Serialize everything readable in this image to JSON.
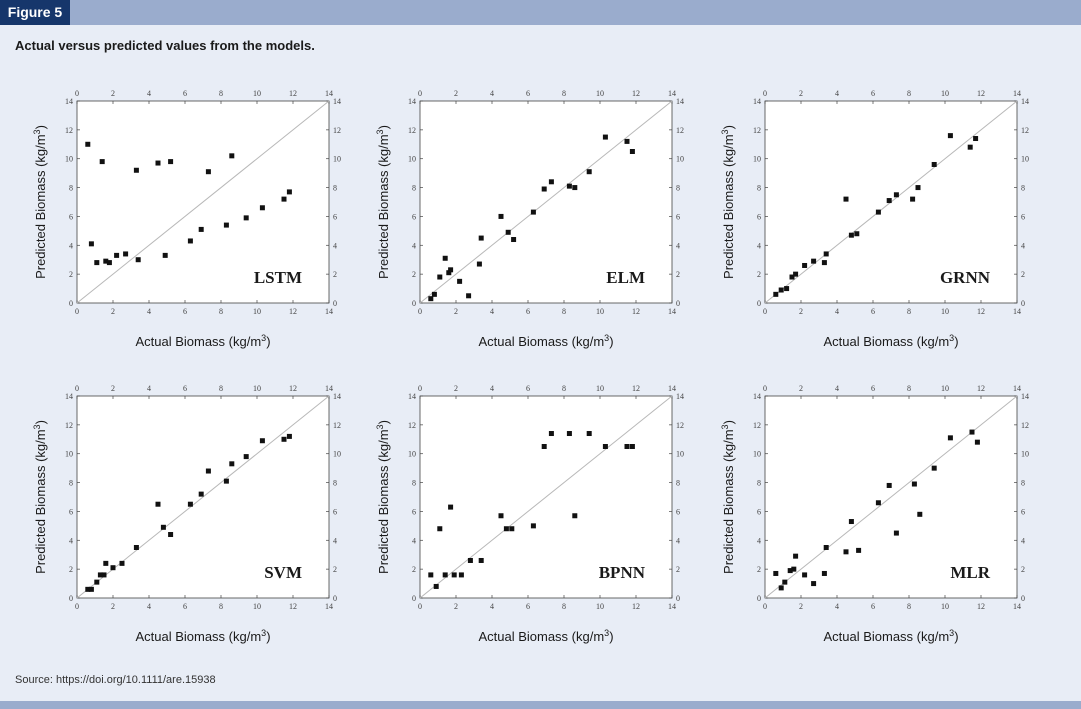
{
  "figure_label": "Figure 5",
  "caption": "Actual versus predicted values from the models.",
  "source": "Source: https://doi.org/10.1111/are.15938",
  "colors": {
    "header_bar": "#9aaccd",
    "figure_tab": "#16366b",
    "background": "#e8edf6",
    "points": "#111111",
    "identity_line": "#b8b8b8"
  },
  "chart_data": [
    {
      "type": "scatter",
      "label": "LSTM",
      "xlabel": "Actual Biomass (kg/m³)",
      "ylabel": "Predicted Biomass (kg/m³)",
      "xlim": [
        0,
        14
      ],
      "ylim": [
        0,
        14
      ],
      "ticks": [
        "0",
        "2",
        "4",
        "6",
        "8",
        "10",
        "12",
        "14"
      ],
      "reference_line": "y = x",
      "grid": false,
      "points": [
        [
          0.6,
          11.0
        ],
        [
          0.8,
          4.1
        ],
        [
          1.1,
          2.8
        ],
        [
          1.4,
          9.8
        ],
        [
          1.6,
          2.9
        ],
        [
          1.8,
          2.8
        ],
        [
          2.2,
          3.3
        ],
        [
          2.7,
          3.4
        ],
        [
          3.3,
          9.2
        ],
        [
          3.4,
          3.0
        ],
        [
          4.5,
          9.7
        ],
        [
          4.9,
          3.3
        ],
        [
          5.2,
          9.8
        ],
        [
          6.3,
          4.3
        ],
        [
          6.9,
          5.1
        ],
        [
          7.3,
          9.1
        ],
        [
          8.3,
          5.4
        ],
        [
          8.6,
          10.2
        ],
        [
          9.4,
          5.9
        ],
        [
          10.3,
          6.6
        ],
        [
          11.5,
          7.2
        ],
        [
          11.8,
          7.7
        ]
      ]
    },
    {
      "type": "scatter",
      "label": "ELM",
      "xlabel": "Actual Biomass (kg/m³)",
      "ylabel": "Predicted Biomass (kg/m³)",
      "xlim": [
        0,
        14
      ],
      "ylim": [
        0,
        14
      ],
      "ticks": [
        "0",
        "2",
        "4",
        "6",
        "8",
        "10",
        "12",
        "14"
      ],
      "reference_line": "y = x",
      "grid": false,
      "points": [
        [
          0.6,
          0.3
        ],
        [
          0.8,
          0.6
        ],
        [
          1.1,
          1.8
        ],
        [
          1.4,
          3.1
        ],
        [
          1.6,
          2.1
        ],
        [
          1.7,
          2.3
        ],
        [
          2.2,
          1.5
        ],
        [
          2.7,
          0.5
        ],
        [
          3.3,
          2.7
        ],
        [
          3.4,
          4.5
        ],
        [
          4.5,
          6.0
        ],
        [
          4.9,
          4.9
        ],
        [
          5.2,
          4.4
        ],
        [
          6.3,
          6.3
        ],
        [
          6.9,
          7.9
        ],
        [
          7.3,
          8.4
        ],
        [
          8.3,
          8.1
        ],
        [
          8.6,
          8.0
        ],
        [
          9.4,
          9.1
        ],
        [
          10.3,
          11.5
        ],
        [
          11.5,
          11.2
        ],
        [
          11.8,
          10.5
        ]
      ]
    },
    {
      "type": "scatter",
      "label": "GRNN",
      "xlabel": "Actual Biomass (kg/m³)",
      "ylabel": "Predicted Biomass (kg/m³)",
      "xlim": [
        0,
        14
      ],
      "ylim": [
        0,
        14
      ],
      "ticks": [
        "0",
        "2",
        "4",
        "6",
        "8",
        "10",
        "12",
        "14"
      ],
      "reference_line": "y = x",
      "grid": false,
      "points": [
        [
          0.6,
          0.6
        ],
        [
          0.9,
          0.9
        ],
        [
          1.2,
          1.0
        ],
        [
          1.5,
          1.8
        ],
        [
          1.7,
          2.0
        ],
        [
          2.2,
          2.6
        ],
        [
          2.7,
          2.9
        ],
        [
          3.3,
          2.8
        ],
        [
          3.4,
          3.4
        ],
        [
          4.5,
          7.2
        ],
        [
          4.8,
          4.7
        ],
        [
          5.1,
          4.8
        ],
        [
          6.3,
          6.3
        ],
        [
          6.9,
          7.1
        ],
        [
          7.3,
          7.5
        ],
        [
          8.2,
          7.2
        ],
        [
          8.5,
          8.0
        ],
        [
          9.4,
          9.6
        ],
        [
          10.3,
          11.6
        ],
        [
          11.4,
          10.8
        ],
        [
          11.7,
          11.4
        ]
      ]
    },
    {
      "type": "scatter",
      "label": "SVM",
      "xlabel": "Actual Biomass (kg/m³)",
      "ylabel": "Predicted Biomass (kg/m³)",
      "xlim": [
        0,
        14
      ],
      "ylim": [
        0,
        14
      ],
      "ticks": [
        "0",
        "2",
        "4",
        "6",
        "8",
        "10",
        "12",
        "14"
      ],
      "reference_line": "y = x",
      "grid": false,
      "points": [
        [
          0.6,
          0.6
        ],
        [
          0.8,
          0.6
        ],
        [
          1.1,
          1.1
        ],
        [
          1.3,
          1.6
        ],
        [
          1.5,
          1.6
        ],
        [
          1.6,
          2.4
        ],
        [
          2.0,
          2.1
        ],
        [
          2.5,
          2.4
        ],
        [
          3.3,
          3.5
        ],
        [
          4.5,
          6.5
        ],
        [
          4.8,
          4.9
        ],
        [
          5.2,
          4.4
        ],
        [
          6.3,
          6.5
        ],
        [
          6.9,
          7.2
        ],
        [
          7.3,
          8.8
        ],
        [
          8.3,
          8.1
        ],
        [
          8.6,
          9.3
        ],
        [
          9.4,
          9.8
        ],
        [
          10.3,
          10.9
        ],
        [
          11.5,
          11.0
        ],
        [
          11.8,
          11.2
        ]
      ]
    },
    {
      "type": "scatter",
      "label": "BPNN",
      "xlabel": "Actual Biomass (kg/m³)",
      "ylabel": "Predicted Biomass (kg/m³)",
      "xlim": [
        0,
        14
      ],
      "ylim": [
        0,
        14
      ],
      "ticks": [
        "0",
        "2",
        "4",
        "6",
        "8",
        "10",
        "12",
        "14"
      ],
      "reference_line": "y = x",
      "grid": false,
      "points": [
        [
          0.6,
          1.6
        ],
        [
          0.9,
          0.8
        ],
        [
          1.1,
          4.8
        ],
        [
          1.4,
          1.6
        ],
        [
          1.7,
          6.3
        ],
        [
          1.9,
          1.6
        ],
        [
          2.3,
          1.6
        ],
        [
          2.8,
          2.6
        ],
        [
          3.4,
          2.6
        ],
        [
          4.5,
          5.7
        ],
        [
          4.8,
          4.8
        ],
        [
          5.1,
          4.8
        ],
        [
          6.3,
          5.0
        ],
        [
          6.9,
          10.5
        ],
        [
          7.3,
          11.4
        ],
        [
          8.3,
          11.4
        ],
        [
          8.6,
          5.7
        ],
        [
          9.4,
          11.4
        ],
        [
          10.3,
          10.5
        ],
        [
          11.5,
          10.5
        ],
        [
          11.8,
          10.5
        ]
      ]
    },
    {
      "type": "scatter",
      "label": "MLR",
      "xlabel": "Actual Biomass (kg/m³)",
      "ylabel": "Predicted Biomass (kg/m³)",
      "xlim": [
        0,
        14
      ],
      "ylim": [
        0,
        14
      ],
      "ticks": [
        "0",
        "2",
        "4",
        "6",
        "8",
        "10",
        "12",
        "14"
      ],
      "reference_line": "y = x",
      "grid": false,
      "points": [
        [
          0.6,
          1.7
        ],
        [
          0.9,
          0.7
        ],
        [
          1.1,
          1.1
        ],
        [
          1.4,
          1.9
        ],
        [
          1.6,
          2.0
        ],
        [
          1.7,
          2.9
        ],
        [
          2.2,
          1.6
        ],
        [
          2.7,
          1.0
        ],
        [
          3.3,
          1.7
        ],
        [
          3.4,
          3.5
        ],
        [
          4.5,
          3.2
        ],
        [
          4.8,
          5.3
        ],
        [
          5.2,
          3.3
        ],
        [
          6.3,
          6.6
        ],
        [
          6.9,
          7.8
        ],
        [
          7.3,
          4.5
        ],
        [
          8.3,
          7.9
        ],
        [
          8.6,
          5.8
        ],
        [
          9.4,
          9.0
        ],
        [
          10.3,
          11.1
        ],
        [
          11.5,
          11.5
        ],
        [
          11.8,
          10.8
        ]
      ]
    }
  ]
}
